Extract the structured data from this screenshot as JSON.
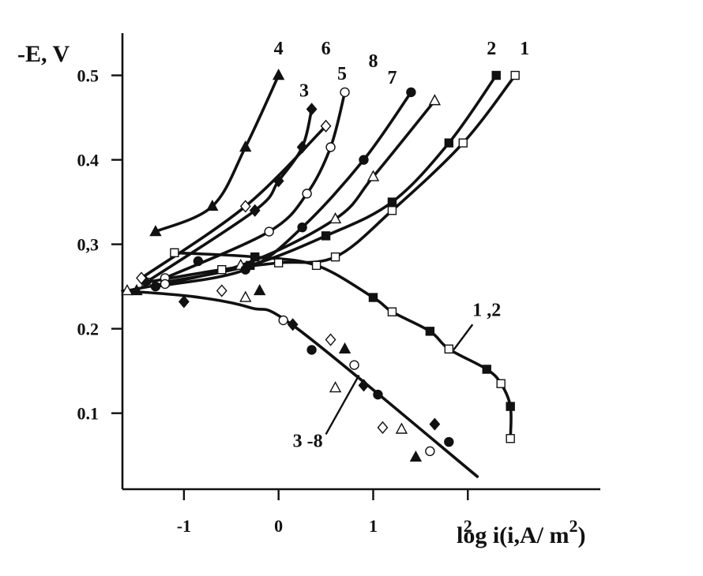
{
  "chart_data": {
    "type": "line",
    "ylabel": "-E, V",
    "xlabel": "log i(i,A/ m",
    "xlabel_sup": "2",
    "xlabel_tail": ")",
    "xlim": [
      -1.65,
      3.4
    ],
    "ylim": [
      0.01,
      0.55
    ],
    "x_ticks": [
      -1,
      0,
      1,
      2
    ],
    "x_tick_labels": [
      "-1",
      "0",
      "1",
      "2"
    ],
    "y_ticks": [
      0.1,
      0.2,
      0.3,
      0.4,
      0.5
    ],
    "y_tick_labels": [
      "0.1",
      "0.2",
      "0,3",
      "0.4",
      "0.5"
    ],
    "series": [
      {
        "name": "1",
        "marker": "open-square",
        "kind": "anodic",
        "points": [
          [
            -1.4,
            0.255
          ],
          [
            -0.6,
            0.27
          ],
          [
            0.0,
            0.278
          ],
          [
            0.6,
            0.285
          ],
          [
            1.2,
            0.34
          ],
          [
            1.95,
            0.42
          ],
          [
            2.5,
            0.5
          ]
        ]
      },
      {
        "name": "2",
        "marker": "filled-square",
        "kind": "anodic",
        "points": [
          [
            -1.2,
            0.255
          ],
          [
            -0.3,
            0.275
          ],
          [
            0.5,
            0.31
          ],
          [
            1.2,
            0.35
          ],
          [
            1.8,
            0.42
          ],
          [
            2.3,
            0.5
          ]
        ]
      },
      {
        "name": "3",
        "marker": "filled-diamond",
        "kind": "anodic",
        "points": [
          [
            -1.4,
            0.255
          ],
          [
            -0.25,
            0.34
          ],
          [
            0.0,
            0.375
          ],
          [
            0.25,
            0.415
          ],
          [
            0.35,
            0.46
          ]
        ]
      },
      {
        "name": "4",
        "marker": "filled-triangle",
        "kind": "anodic",
        "points": [
          [
            -1.3,
            0.315
          ],
          [
            -0.7,
            0.345
          ],
          [
            -0.35,
            0.415
          ],
          [
            0.0,
            0.5
          ]
        ]
      },
      {
        "name": "5",
        "marker": "open-circle",
        "kind": "anodic",
        "points": [
          [
            -1.2,
            0.26
          ],
          [
            -0.1,
            0.315
          ],
          [
            0.3,
            0.36
          ],
          [
            0.55,
            0.415
          ],
          [
            0.7,
            0.48
          ]
        ]
      },
      {
        "name": "6",
        "marker": "open-diamond",
        "kind": "anodic",
        "points": [
          [
            -1.45,
            0.26
          ],
          [
            -0.35,
            0.345
          ],
          [
            0.5,
            0.44
          ]
        ]
      },
      {
        "name": "7",
        "marker": "open-triangle",
        "kind": "anodic",
        "points": [
          [
            -1.6,
            0.245
          ],
          [
            -0.4,
            0.275
          ],
          [
            0.6,
            0.33
          ],
          [
            1.0,
            0.38
          ],
          [
            1.65,
            0.47
          ]
        ]
      },
      {
        "name": "8",
        "marker": "filled-circle",
        "kind": "anodic",
        "points": [
          [
            -1.3,
            0.25
          ],
          [
            -0.35,
            0.27
          ],
          [
            0.25,
            0.32
          ],
          [
            0.9,
            0.4
          ],
          [
            1.4,
            0.48
          ]
        ]
      },
      {
        "name": "1 ,2",
        "marker": "mixed-square",
        "kind": "cathodic",
        "points": [
          [
            -1.1,
            0.29
          ],
          [
            -0.25,
            0.285
          ],
          [
            0.4,
            0.275
          ],
          [
            1.0,
            0.237
          ],
          [
            1.2,
            0.22
          ],
          [
            1.6,
            0.197
          ],
          [
            1.8,
            0.176
          ],
          [
            2.2,
            0.152
          ],
          [
            2.35,
            0.135
          ],
          [
            2.45,
            0.108
          ],
          [
            2.45,
            0.07
          ]
        ]
      },
      {
        "name": "3 -8",
        "marker": "mixed",
        "kind": "cathodic",
        "points": [
          [
            -1.5,
            0.245
          ],
          [
            -1.2,
            0.253
          ],
          [
            -1.0,
            0.232
          ],
          [
            -0.85,
            0.28
          ],
          [
            -0.6,
            0.245
          ],
          [
            -0.35,
            0.237
          ],
          [
            -0.2,
            0.245
          ],
          [
            0.05,
            0.21
          ],
          [
            0.15,
            0.205
          ],
          [
            0.35,
            0.175
          ],
          [
            0.55,
            0.187
          ],
          [
            0.6,
            0.13
          ],
          [
            0.7,
            0.176
          ],
          [
            0.8,
            0.157
          ],
          [
            0.9,
            0.133
          ],
          [
            1.05,
            0.122
          ],
          [
            1.1,
            0.083
          ],
          [
            1.3,
            0.081
          ],
          [
            1.45,
            0.048
          ],
          [
            1.6,
            0.055
          ],
          [
            1.65,
            0.087
          ],
          [
            1.8,
            0.066
          ]
        ]
      }
    ],
    "curve_labels": [
      {
        "text": "4",
        "x": -0.05,
        "y": 0.525
      },
      {
        "text": "3",
        "x": 0.22,
        "y": 0.475
      },
      {
        "text": "6",
        "x": 0.45,
        "y": 0.525
      },
      {
        "text": "5",
        "x": 0.62,
        "y": 0.495
      },
      {
        "text": "8",
        "x": 0.95,
        "y": 0.51
      },
      {
        "text": "7",
        "x": 1.15,
        "y": 0.49
      },
      {
        "text": "2",
        "x": 2.2,
        "y": 0.525
      },
      {
        "text": "1",
        "x": 2.55,
        "y": 0.525
      },
      {
        "text": "1 ,2",
        "x": 2.05,
        "y": 0.215
      },
      {
        "text": "3 -8",
        "x": 0.15,
        "y": 0.06
      }
    ]
  }
}
